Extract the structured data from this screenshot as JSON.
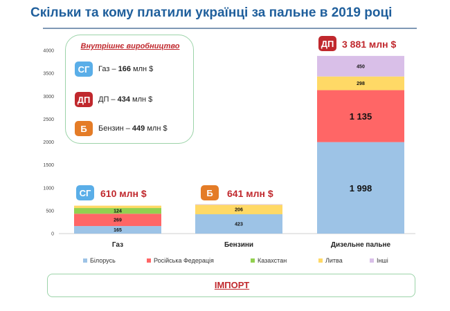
{
  "title": "Скільки та кому платили українці за пальне в 2019 році",
  "chart_data": {
    "type": "bar",
    "stacked": true,
    "categories": [
      "Газ",
      "Бензини",
      "Дизельне пальне"
    ],
    "series": [
      {
        "name": "Білорусь",
        "color": "#9dc3e6",
        "values": [
          165,
          423,
          1998
        ],
        "labels": [
          "165",
          "423",
          "1 998"
        ]
      },
      {
        "name": "Російська Федерація",
        "color": "#ff6666",
        "values": [
          269,
          0,
          1135
        ],
        "labels": [
          "269",
          "",
          "1 135"
        ]
      },
      {
        "name": "Казахстан",
        "color": "#92d050",
        "values": [
          124,
          0,
          0
        ],
        "labels": [
          "124",
          "",
          ""
        ]
      },
      {
        "name": "Литва",
        "color": "#ffd966",
        "values": [
          52,
          206,
          298
        ],
        "labels": [
          "",
          "206",
          "298"
        ]
      },
      {
        "name": "Інші",
        "color": "#d9bfe8",
        "values": [
          0,
          12,
          450
        ],
        "labels": [
          "",
          "",
          "450"
        ]
      }
    ],
    "ylim": [
      0,
      4000
    ],
    "yticks": [
      0,
      500,
      1000,
      1500,
      2000,
      2500,
      3000,
      3500,
      4000
    ],
    "grid": false,
    "legend": "bottom",
    "totals": [
      {
        "badge": "СГ",
        "label": "610 млн $"
      },
      {
        "badge": "Б",
        "label": "641 млн $"
      },
      {
        "badge": "ДП",
        "label": "3 881 млн $"
      }
    ]
  },
  "domestic": {
    "title": "Внутрішнє виробництво",
    "rows": [
      {
        "badge": "СГ",
        "name": "Газ",
        "dash": " – ",
        "value": "166",
        "unit": " млн $"
      },
      {
        "badge": "ДП",
        "name": "ДП",
        "dash": " – ",
        "value": "434",
        "unit": " млн $"
      },
      {
        "badge": "Б",
        "name": "Бензин",
        "dash": " – ",
        "value": "449",
        "unit": " млн $"
      }
    ]
  },
  "import_label": "ІМПОРТ"
}
